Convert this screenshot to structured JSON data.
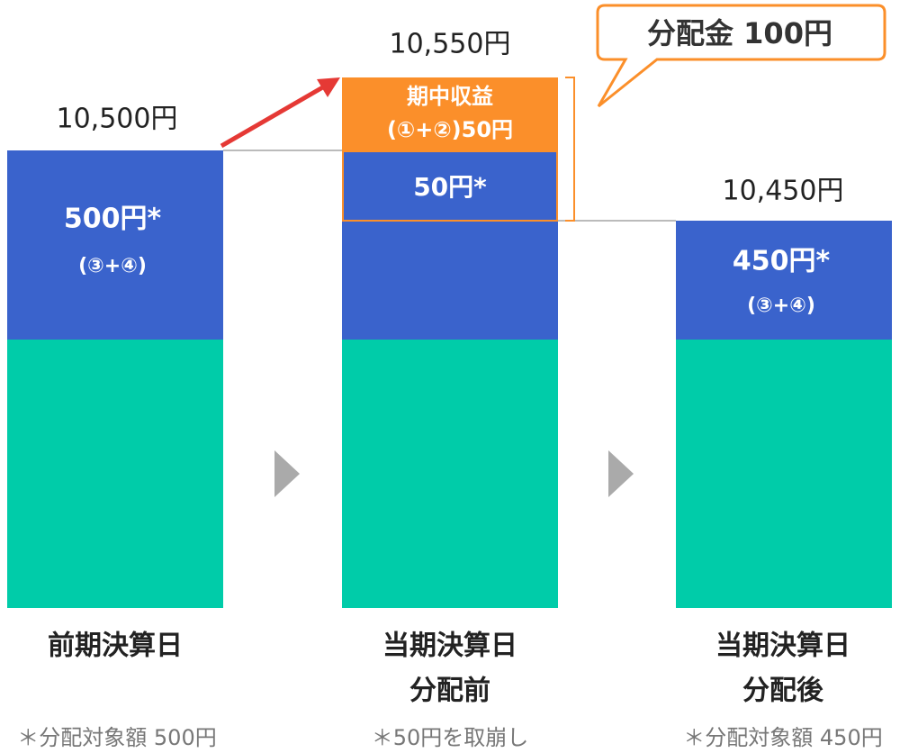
{
  "columns": [
    {
      "total": "10,500円",
      "segment": "500円*",
      "segment_note": "(③+④)",
      "label_lines": [
        "前期決算日"
      ],
      "footnote": "＊分配対象額 500円"
    },
    {
      "total": "10,550円",
      "segment": "50円*",
      "income_title": "期中収益",
      "income_detail": "(①+②)50円",
      "label_lines": [
        "当期決算日",
        "分配前"
      ],
      "footnote": "＊50円を取崩し"
    },
    {
      "total": "10,450円",
      "segment": "450円*",
      "segment_note": "(③+④)",
      "label_lines": [
        "当期決算日",
        "分配後"
      ],
      "footnote": "＊分配対象額 450円"
    }
  ],
  "callout": "分配金 100円"
}
